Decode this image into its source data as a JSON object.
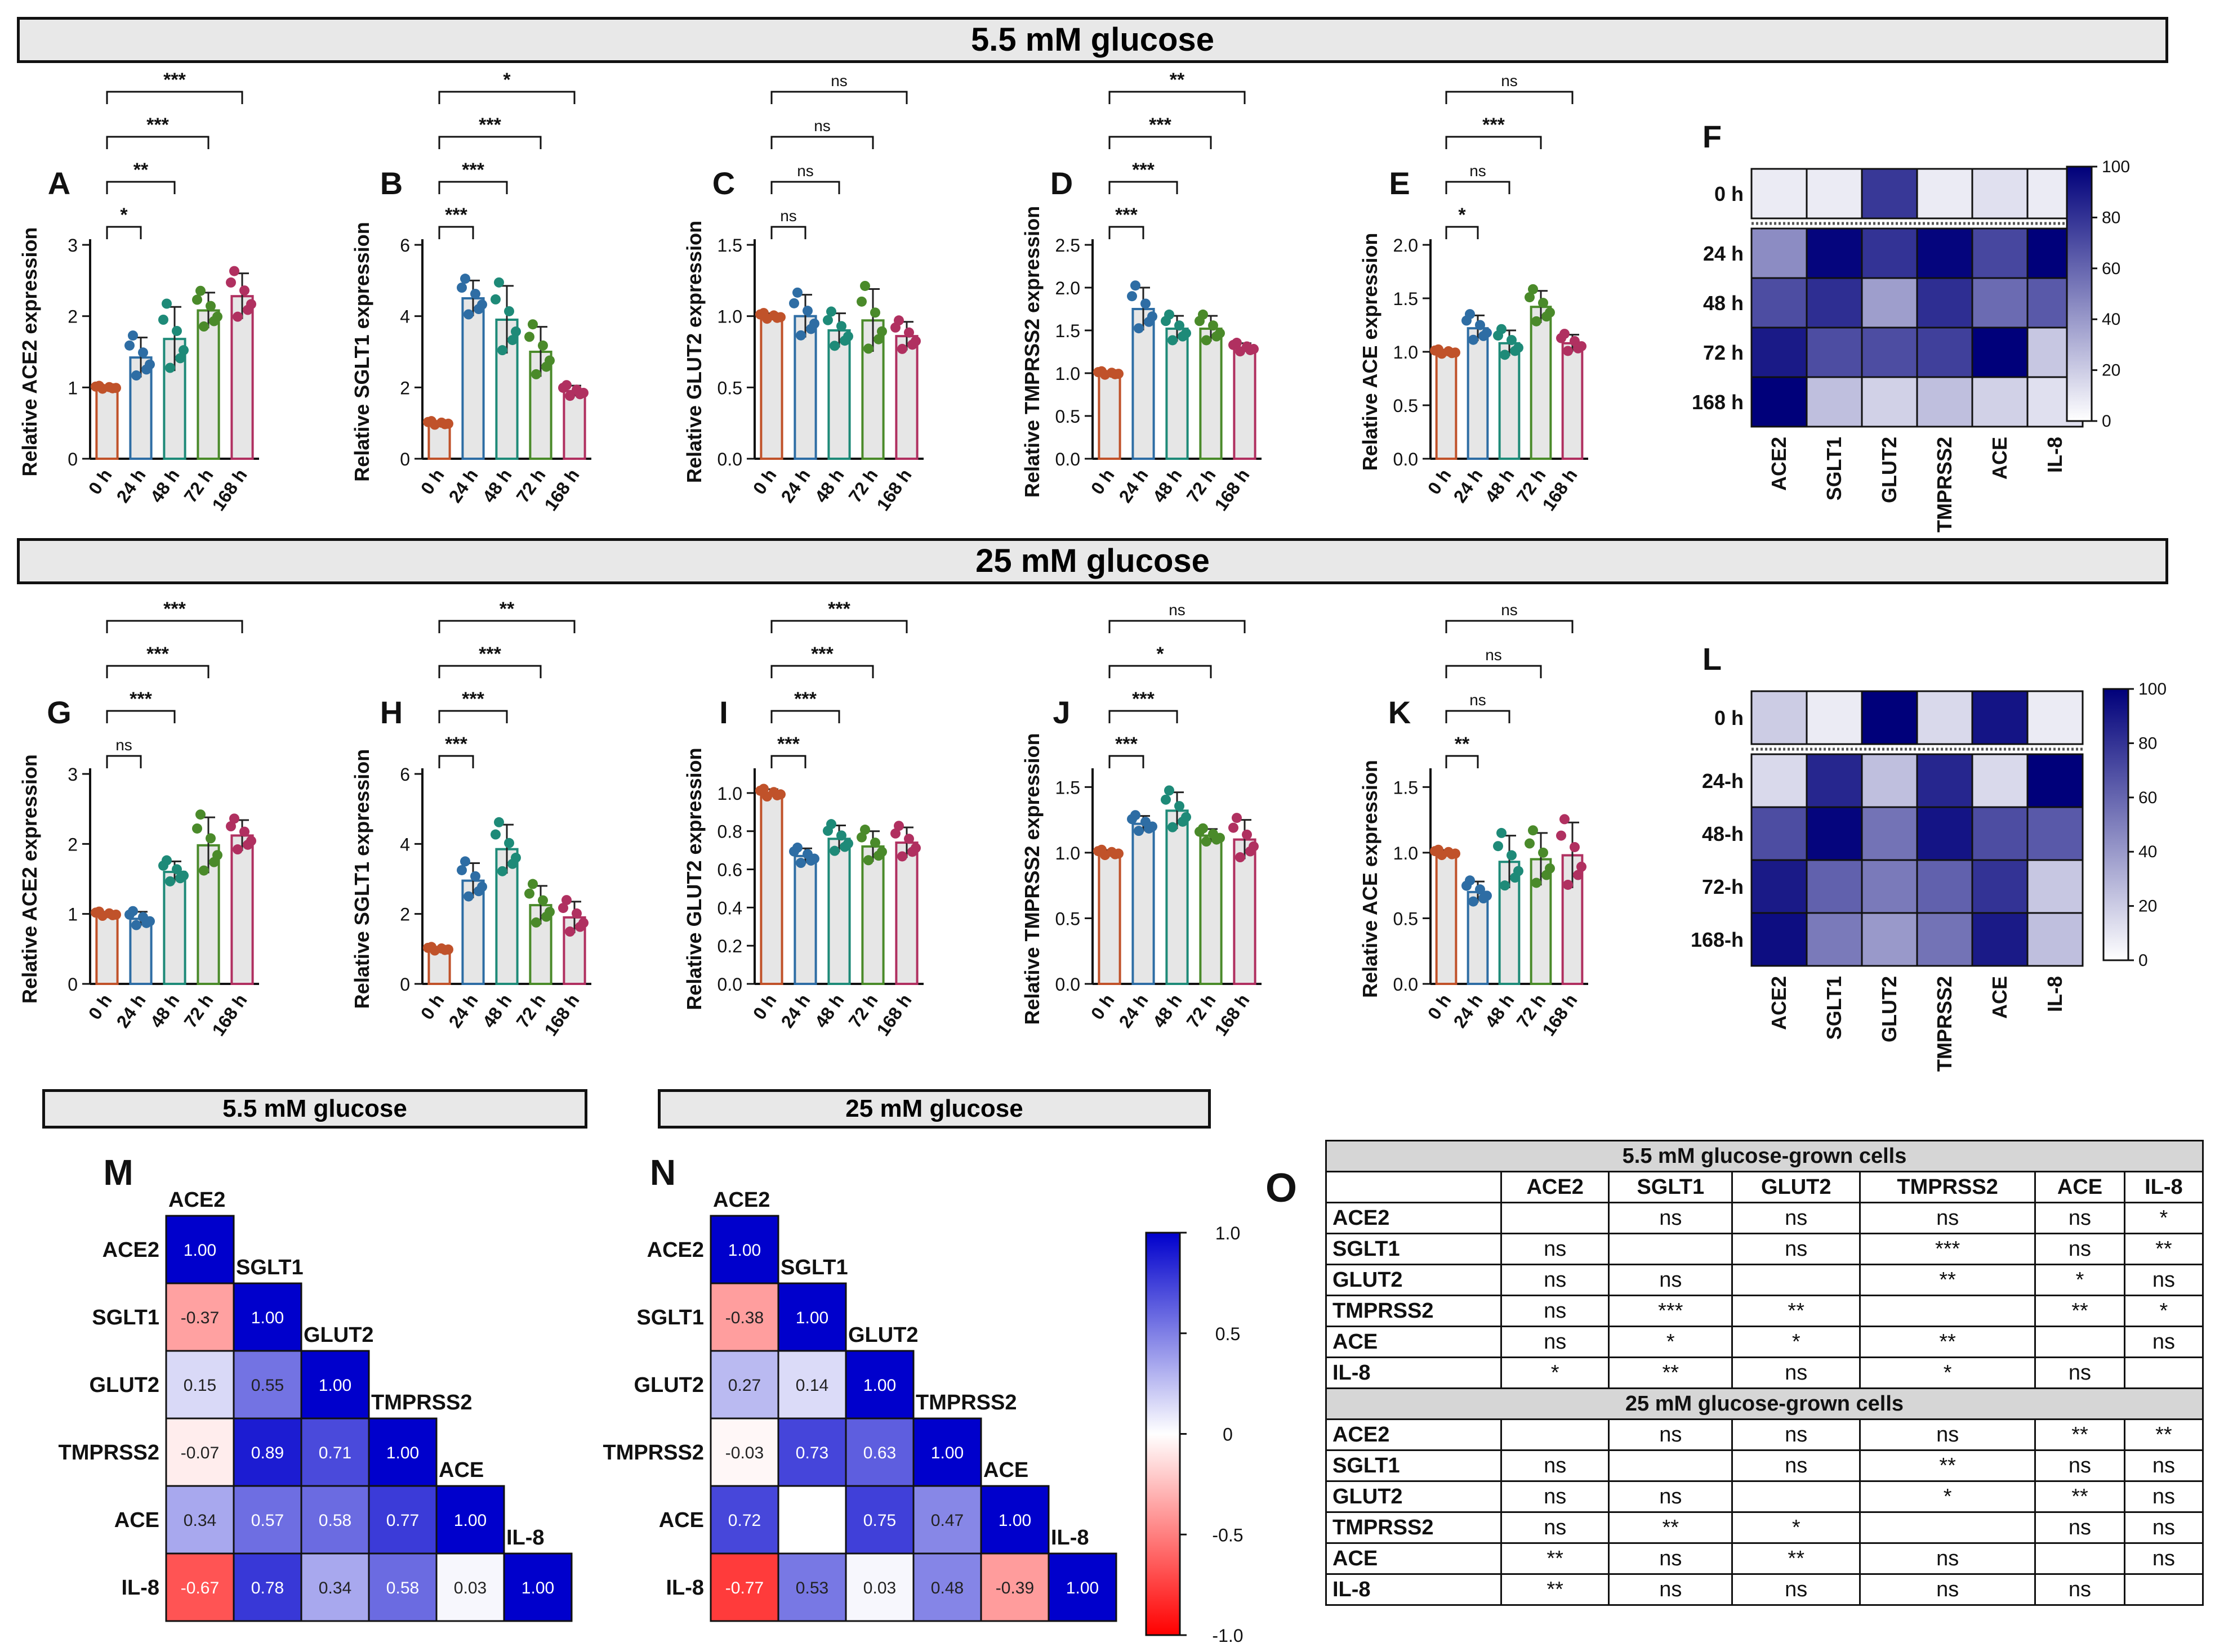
{
  "chart_data": {
    "rows": [
      "0 h",
      "24 h",
      "48 h",
      "72 h",
      "168 h"
    ],
    "genes": [
      "ACE2",
      "SGLT1",
      "GLUT2",
      "TMPRSS2",
      "ACE",
      "IL-8"
    ],
    "conditions": [
      {
        "title": "5.5 mM glucose",
        "panels": [
          {
            "letter": "A",
            "type": "bar",
            "ylabel": "Relative ACE2 expression",
            "ylim": [
              0,
              3
            ],
            "ticks": [
              "0",
              "1",
              "2",
              "3"
            ],
            "categories": [
              "0 h",
              "24 h",
              "48 h",
              "72 h",
              "168 h"
            ],
            "values": [
              1.0,
              1.42,
              1.68,
              2.08,
              2.28
            ],
            "sd": [
              0.02,
              0.28,
              0.45,
              0.25,
              0.32
            ],
            "sig": [
              "*",
              "**",
              "***",
              "***"
            ]
          },
          {
            "letter": "B",
            "type": "bar",
            "ylabel": "Relative SGLT1 expression",
            "ylim": [
              0,
              6
            ],
            "ticks": [
              "0",
              "2",
              "4",
              "6"
            ],
            "categories": [
              "0 h",
              "24 h",
              "48 h",
              "72 h",
              "168 h"
            ],
            "values": [
              1.0,
              4.5,
              3.9,
              3.0,
              1.9
            ],
            "sd": [
              0.05,
              0.5,
              0.95,
              0.7,
              0.15
            ],
            "sig": [
              "***",
              "***",
              "***",
              "*"
            ]
          },
          {
            "letter": "C",
            "type": "bar",
            "ylabel": "Relative GLUT2 expression",
            "ylim": [
              0,
              1.5
            ],
            "ticks": [
              "0.0",
              "0.5",
              "1.0",
              "1.5"
            ],
            "categories": [
              "0 h",
              "24 h",
              "48 h",
              "72 h",
              "168 h"
            ],
            "values": [
              1.0,
              1.0,
              0.9,
              0.97,
              0.86
            ],
            "sd": [
              0.02,
              0.15,
              0.12,
              0.22,
              0.1
            ],
            "sig": [
              "ns",
              "ns",
              "ns",
              "ns"
            ]
          },
          {
            "letter": "D",
            "type": "bar",
            "ylabel": "Relative TMPRSS2 expression",
            "ylim": [
              0,
              2.5
            ],
            "ticks": [
              "0.0",
              "0.5",
              "1.0",
              "1.5",
              "2.0",
              "2.5"
            ],
            "categories": [
              "0 h",
              "24 h",
              "48 h",
              "72 h",
              "168 h"
            ],
            "values": [
              1.0,
              1.75,
              1.52,
              1.52,
              1.3
            ],
            "sd": [
              0.02,
              0.25,
              0.15,
              0.15,
              0.05
            ],
            "sig": [
              "***",
              "***",
              "***",
              "**"
            ]
          },
          {
            "letter": "E",
            "type": "bar",
            "ylabel": "Relative ACE expression",
            "ylim": [
              0,
              2
            ],
            "ticks": [
              "0.0",
              "0.5",
              "1.0",
              "1.5",
              "2.0"
            ],
            "categories": [
              "0 h",
              "24 h",
              "48 h",
              "72 h",
              "168 h"
            ],
            "values": [
              1.0,
              1.22,
              1.08,
              1.42,
              1.08
            ],
            "sd": [
              0.02,
              0.12,
              0.12,
              0.15,
              0.08
            ],
            "sig": [
              "*",
              "ns",
              "***",
              "ns"
            ]
          },
          {
            "letter": "F",
            "type": "heatmap",
            "scale": [
              0,
              100
            ],
            "ticks": [
              "0",
              "20",
              "40",
              "60",
              "80",
              "100"
            ],
            "rowlabels": [
              "0 h",
              "24 h",
              "48 h",
              "72 h",
              "168 h"
            ],
            "values": [
              [
                8,
                8,
                78,
                8,
                12,
                8
              ],
              [
                45,
                98,
                80,
                98,
                72,
                100
              ],
              [
                70,
                82,
                38,
                82,
                58,
                65
              ],
              [
                90,
                70,
                70,
                75,
                100,
                22
              ],
              [
                100,
                25,
                18,
                25,
                18,
                12
              ]
            ]
          }
        ]
      },
      {
        "title": "25 mM glucose",
        "panels": [
          {
            "letter": "G",
            "type": "bar",
            "ylabel": "Relative ACE2 expression",
            "ylim": [
              0,
              3
            ],
            "ticks": [
              "0",
              "1",
              "2",
              "3"
            ],
            "categories": [
              "0 h",
              "24 h",
              "48 h",
              "72 h",
              "168 h"
            ],
            "values": [
              1.0,
              0.93,
              1.6,
              1.98,
              2.12
            ],
            "sd": [
              0.03,
              0.1,
              0.15,
              0.4,
              0.22
            ],
            "sig": [
              "ns",
              "***",
              "***",
              "***"
            ]
          },
          {
            "letter": "H",
            "type": "bar",
            "ylabel": "Relative SGLT1 expression",
            "ylim": [
              0,
              6
            ],
            "ticks": [
              "0",
              "2",
              "4",
              "6"
            ],
            "categories": [
              "0 h",
              "24 h",
              "48 h",
              "72 h",
              "168 h"
            ],
            "values": [
              1.0,
              2.95,
              3.85,
              2.25,
              1.9
            ],
            "sd": [
              0.05,
              0.5,
              0.7,
              0.55,
              0.45
            ],
            "sig": [
              "***",
              "***",
              "***",
              "**"
            ]
          },
          {
            "letter": "I",
            "type": "bar",
            "ylabel": "Relative GLUT2 expression",
            "ylim": [
              0,
              1.1
            ],
            "ticks": [
              "0.0",
              "0.2",
              "0.4",
              "0.6",
              "0.8",
              "1.0"
            ],
            "categories": [
              "0 h",
              "24 h",
              "48 h",
              "72 h",
              "168 h"
            ],
            "values": [
              1.0,
              0.67,
              0.76,
              0.72,
              0.74
            ],
            "sd": [
              0.02,
              0.04,
              0.07,
              0.08,
              0.08
            ],
            "sig": [
              "***",
              "***",
              "***",
              "***"
            ]
          },
          {
            "letter": "J",
            "type": "bar",
            "ylabel": "Relative TMPRSS2 expression",
            "ylim": [
              0,
              1.6
            ],
            "ticks": [
              "0.0",
              "0.5",
              "1.0",
              "1.5"
            ],
            "categories": [
              "0 h",
              "24 h",
              "48 h",
              "72 h",
              "168 h"
            ],
            "values": [
              1.0,
              1.22,
              1.32,
              1.13,
              1.1
            ],
            "sd": [
              0.02,
              0.06,
              0.14,
              0.05,
              0.15
            ],
            "sig": [
              "***",
              "***",
              "*",
              "ns"
            ]
          },
          {
            "letter": "K",
            "type": "bar",
            "ylabel": "Relative ACE expression",
            "ylim": [
              0,
              1.6
            ],
            "ticks": [
              "0.0",
              "0.5",
              "1.0",
              "1.5"
            ],
            "categories": [
              "0 h",
              "24 h",
              "48 h",
              "72 h",
              "168 h"
            ],
            "values": [
              1.0,
              0.7,
              0.93,
              0.95,
              0.98
            ],
            "sd": [
              0.02,
              0.08,
              0.2,
              0.2,
              0.25
            ],
            "sig": [
              "**",
              "ns",
              "ns",
              "ns"
            ]
          },
          {
            "letter": "L",
            "type": "heatmap",
            "scale": [
              0,
              100
            ],
            "ticks": [
              "0",
              "20",
              "40",
              "60",
              "80",
              "100"
            ],
            "rowlabels": [
              "0 h",
              "24-h",
              "48-h",
              "72-h",
              "168-h"
            ],
            "values": [
              [
                20,
                8,
                100,
                15,
                92,
                8
              ],
              [
                15,
                85,
                25,
                85,
                15,
                100
              ],
              [
                70,
                98,
                55,
                92,
                70,
                65
              ],
              [
                90,
                62,
                52,
                62,
                80,
                22
              ],
              [
                95,
                52,
                40,
                55,
                90,
                25
              ]
            ]
          }
        ]
      }
    ],
    "correlations": [
      {
        "letter": "M",
        "title": "5.5 mM glucose",
        "labels": [
          "ACE2",
          "SGLT1",
          "GLUT2",
          "TMPRSS2",
          "ACE",
          "IL-8"
        ],
        "matrix": [
          [
            1.0
          ],
          [
            -0.37,
            1.0
          ],
          [
            0.15,
            0.55,
            1.0
          ],
          [
            -0.07,
            0.89,
            0.71,
            1.0
          ],
          [
            0.34,
            0.57,
            0.58,
            0.77,
            1.0
          ],
          [
            -0.67,
            0.78,
            0.34,
            0.58,
            0.03,
            1.0
          ]
        ]
      },
      {
        "letter": "N",
        "title": "25 mM glucose",
        "labels": [
          "ACE2",
          "SGLT1",
          "GLUT2",
          "TMPRSS2",
          "ACE",
          "IL-8"
        ],
        "matrix": [
          [
            1.0
          ],
          [
            -0.38,
            1.0
          ],
          [
            0.27,
            0.14,
            1.0
          ],
          [
            -0.03,
            0.73,
            0.63,
            1.0
          ],
          [
            0.72,
            null,
            0.75,
            0.47,
            1.0
          ],
          [
            -0.77,
            0.53,
            0.03,
            0.48,
            -0.39,
            1.0
          ]
        ]
      }
    ],
    "corr_scale": {
      "ticks": [
        "1.0",
        "0.5",
        "0",
        "-0.5",
        "-1.0"
      ]
    },
    "significance": {
      "letter": "O",
      "columns": [
        "ACE2",
        "SGLT1",
        "GLUT2",
        "TMPRSS2",
        "ACE",
        "IL-8"
      ],
      "sections": [
        {
          "title": "5.5 mM glucose-grown cells",
          "rows": [
            {
              "label": "ACE2",
              "cells": [
                "",
                "ns",
                "ns",
                "ns",
                "ns",
                "*"
              ]
            },
            {
              "label": "SGLT1",
              "cells": [
                "ns",
                "",
                "ns",
                "***",
                "ns",
                "**"
              ]
            },
            {
              "label": "GLUT2",
              "cells": [
                "ns",
                "ns",
                "",
                "**",
                "*",
                "ns"
              ]
            },
            {
              "label": "TMPRSS2",
              "cells": [
                "ns",
                "***",
                "**",
                "",
                "**",
                "*"
              ]
            },
            {
              "label": "ACE",
              "cells": [
                "ns",
                "*",
                "*",
                "**",
                "",
                "ns"
              ]
            },
            {
              "label": "IL-8",
              "cells": [
                "*",
                "**",
                "ns",
                "*",
                "ns",
                ""
              ]
            }
          ]
        },
        {
          "title": "25 mM glucose-grown cells",
          "rows": [
            {
              "label": "ACE2",
              "cells": [
                "",
                "ns",
                "ns",
                "ns",
                "**",
                "**"
              ]
            },
            {
              "label": "SGLT1",
              "cells": [
                "ns",
                "",
                "ns",
                "**",
                "ns",
                "ns"
              ]
            },
            {
              "label": "GLUT2",
              "cells": [
                "ns",
                "ns",
                "",
                "*",
                "**",
                "ns"
              ]
            },
            {
              "label": "TMPRSS2",
              "cells": [
                "ns",
                "**",
                "*",
                "",
                "ns",
                "ns"
              ]
            },
            {
              "label": "ACE",
              "cells": [
                "**",
                "ns",
                "**",
                "ns",
                "",
                "ns"
              ]
            },
            {
              "label": "IL-8",
              "cells": [
                "**",
                "ns",
                "ns",
                "ns",
                "ns",
                ""
              ]
            }
          ]
        }
      ]
    }
  },
  "colors": {
    "c0": "#c0522a",
    "c24": "#2e6da4",
    "c48": "#1e8a78",
    "c72": "#4a8a2a",
    "c168": "#b03060",
    "bar_fill": "#e6e6e6",
    "heat_lo": "#ffffff",
    "heat_hi": "#00007a",
    "corr_pos": "#0000cc",
    "corr_neg": "#ff0000"
  }
}
